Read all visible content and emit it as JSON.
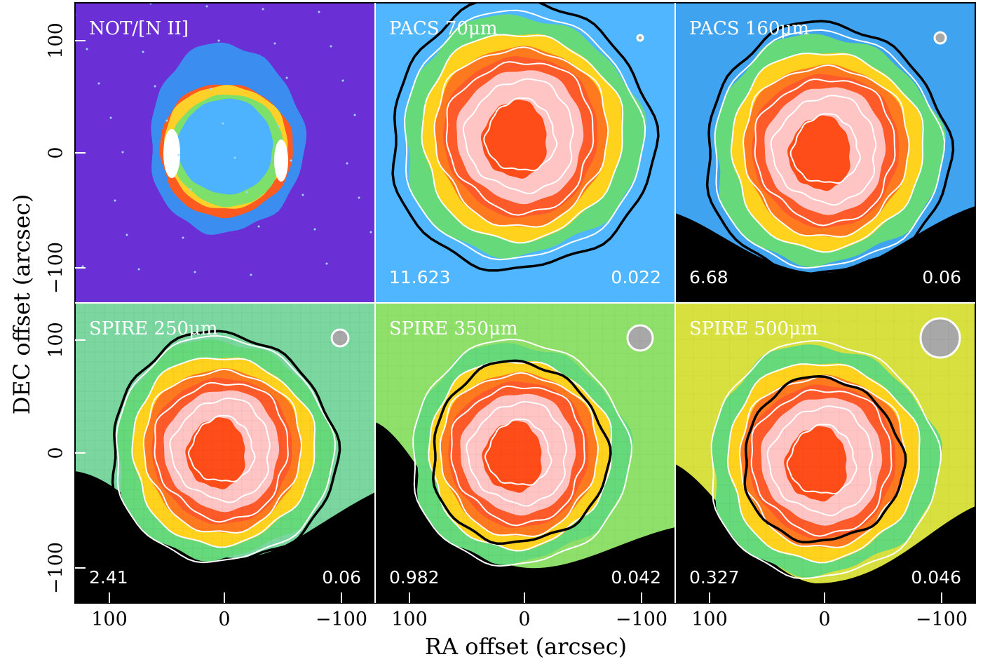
{
  "axes": {
    "xlabel": "RA offset (arcsec)",
    "ylabel": "DEC offset (arcsec)",
    "xticks": [
      "100",
      "0",
      "−100"
    ],
    "yticks": [
      "100",
      "0",
      "−100"
    ],
    "xlim": [
      130,
      -130
    ],
    "ylim": [
      -130,
      130
    ]
  },
  "panels": [
    {
      "id": "not",
      "label": "NOT/[N II]",
      "left_value": "",
      "right_value": "",
      "beam": "none",
      "style": "optical"
    },
    {
      "id": "pacs70",
      "label": "PACS 70μm",
      "left_value": "11.623",
      "right_value": "0.022",
      "beam": "small",
      "style": "pacs70"
    },
    {
      "id": "pacs160",
      "label": "PACS 160μm",
      "left_value": "6.68",
      "right_value": "0.06",
      "beam": "small",
      "style": "pacs160"
    },
    {
      "id": "spire250",
      "label": "SPIRE 250μm",
      "left_value": "2.41",
      "right_value": "0.06",
      "beam": "medium",
      "style": "spire250"
    },
    {
      "id": "spire350",
      "label": "SPIRE 350μm",
      "left_value": "0.982",
      "right_value": "0.042",
      "beam": "large",
      "style": "spire350"
    },
    {
      "id": "spire500",
      "label": "SPIRE 500μm",
      "left_value": "0.327",
      "right_value": "0.046",
      "beam": "xlarge",
      "style": "spire500"
    }
  ],
  "colors": {
    "background_optical": "#6b2fd6",
    "contour_white": "#ffffff",
    "contour_black": "#000000",
    "beam": "#a8a8a8"
  }
}
